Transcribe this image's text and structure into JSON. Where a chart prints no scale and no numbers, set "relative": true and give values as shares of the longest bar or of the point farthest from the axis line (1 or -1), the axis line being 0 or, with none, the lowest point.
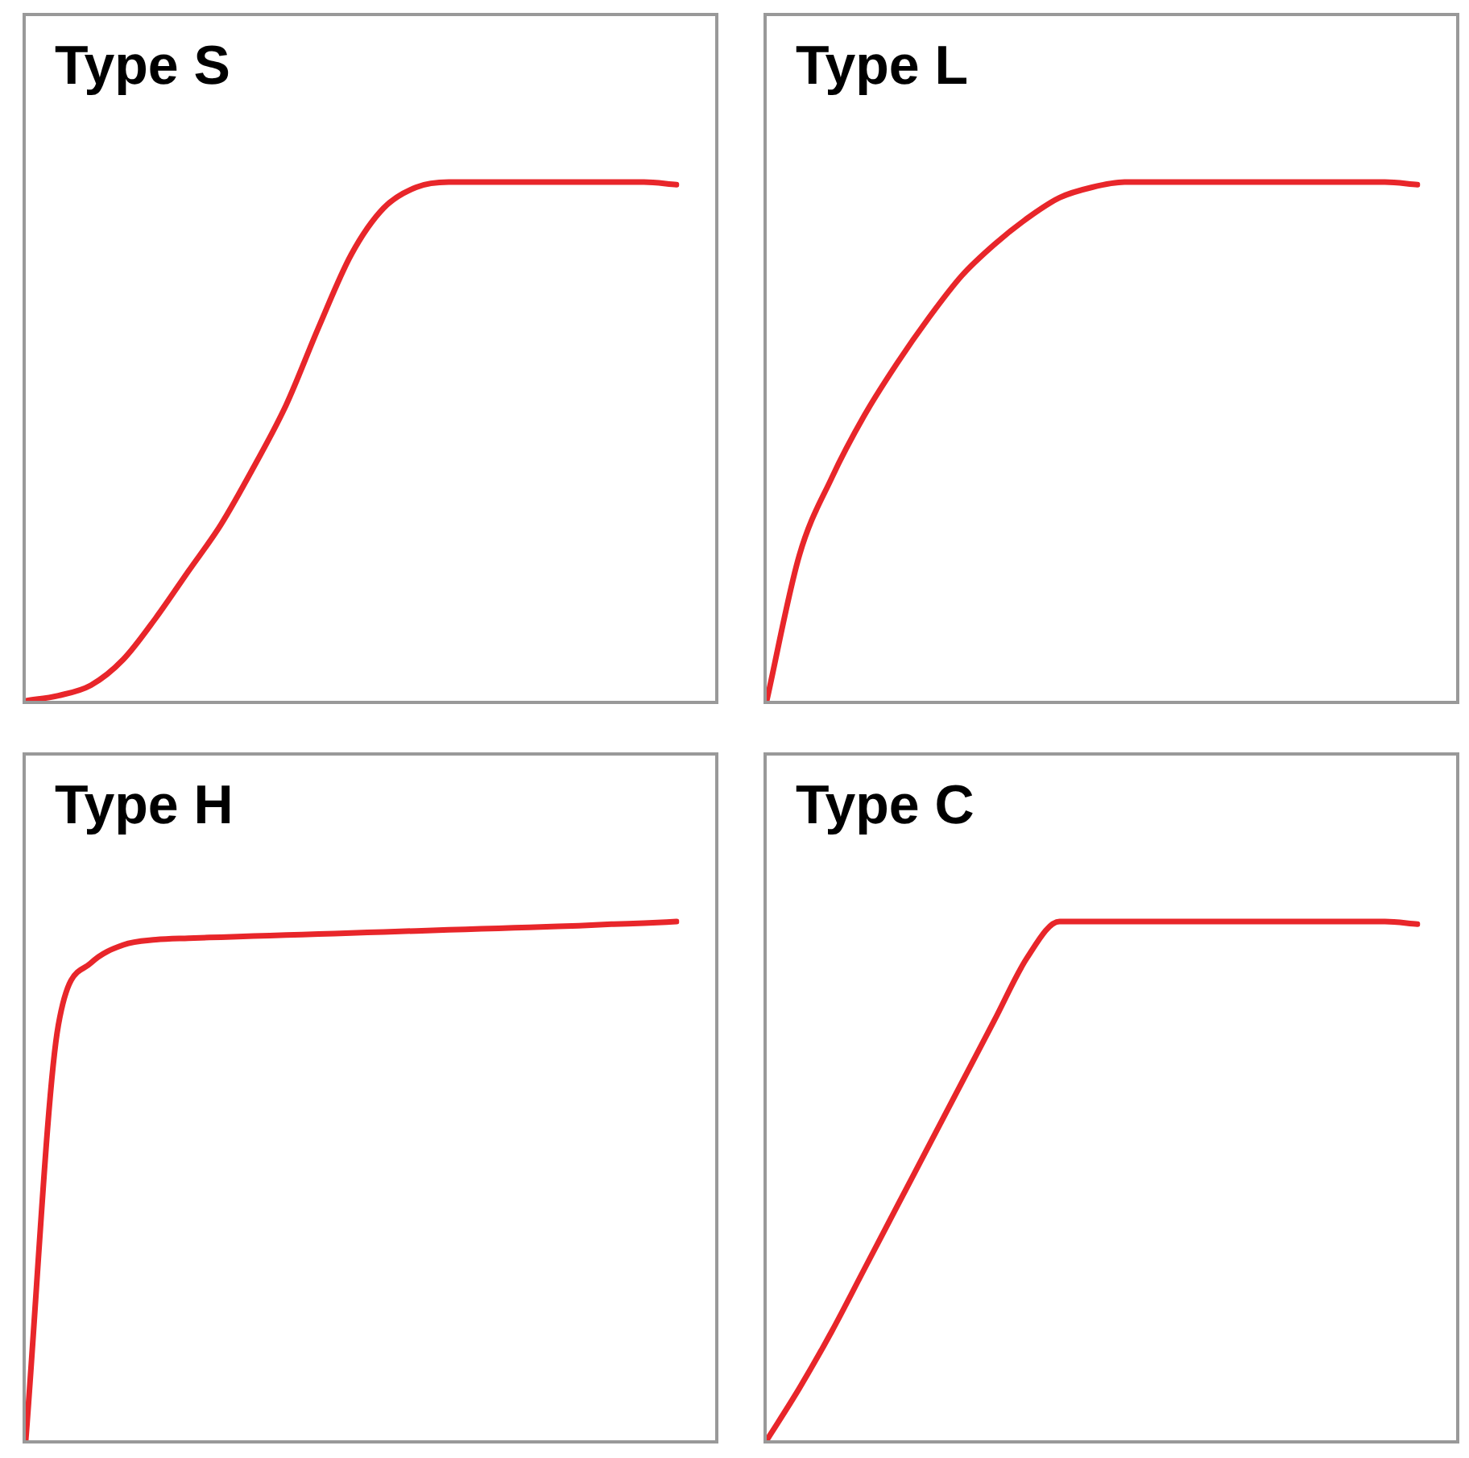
{
  "chart_data": [
    {
      "type": "line",
      "title": "Type S",
      "relative": true,
      "color": "#e8262a",
      "categories": [
        null,
        null,
        null,
        null,
        null,
        null,
        null,
        null,
        null,
        null,
        null,
        null,
        null,
        null,
        null,
        null,
        null,
        null,
        null,
        null,
        null
      ],
      "values": [
        0,
        0.01,
        0.03,
        0.08,
        0.16,
        0.25,
        0.34,
        0.45,
        0.57,
        0.72,
        0.86,
        0.95,
        0.99,
        1,
        1,
        1,
        1,
        1,
        1,
        1,
        0.995
      ]
    },
    {
      "type": "line",
      "title": "Type L",
      "relative": true,
      "color": "#e8262a",
      "categories": [
        null,
        null,
        null,
        null,
        null,
        null,
        null,
        null,
        null,
        null,
        null,
        null,
        null,
        null,
        null,
        null,
        null,
        null,
        null,
        null,
        null
      ],
      "values": [
        0,
        0.28,
        0.43,
        0.55,
        0.65,
        0.74,
        0.82,
        0.88,
        0.93,
        0.97,
        0.99,
        1,
        1,
        1,
        1,
        1,
        1,
        1,
        1,
        1,
        0.995
      ]
    },
    {
      "type": "line",
      "title": "Type H",
      "relative": true,
      "color": "#e8262a",
      "categories": [
        null,
        null,
        null,
        null,
        null,
        null,
        null,
        null,
        null,
        null,
        null,
        null,
        null,
        null,
        null,
        null,
        null,
        null,
        null,
        null,
        null
      ],
      "values": [
        0,
        0.8,
        0.92,
        0.955,
        0.965,
        0.968,
        0.97,
        0.972,
        0.974,
        0.976,
        0.978,
        0.98,
        0.982,
        0.984,
        0.986,
        0.988,
        0.99,
        0.992,
        0.995,
        0.997,
        1
      ]
    },
    {
      "type": "line",
      "title": "Type C",
      "relative": true,
      "color": "#e8262a",
      "categories": [
        null,
        null,
        null,
        null,
        null,
        null,
        null,
        null,
        null,
        null,
        null,
        null,
        null,
        null,
        null,
        null,
        null,
        null,
        null,
        null,
        null
      ],
      "values": [
        0,
        0.1,
        0.21,
        0.33,
        0.45,
        0.57,
        0.69,
        0.81,
        0.93,
        1,
        1,
        1,
        1,
        1,
        1,
        1,
        1,
        1,
        1,
        1,
        0.995
      ]
    }
  ]
}
